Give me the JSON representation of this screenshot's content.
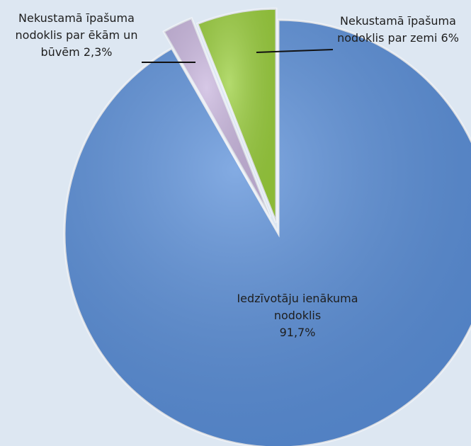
{
  "chart_data": {
    "type": "pie",
    "categories": [
      "Iedzīvotāju ienākuma nodoklis",
      "Nekustamā īpašuma nodoklis par ēkām un būvēm",
      "Nekustamā īpašuma nodoklis par zemi"
    ],
    "values": [
      91.7,
      2.3,
      6
    ],
    "value_labels": [
      "91,7%",
      "2,3%",
      "6%"
    ],
    "colors": [
      "#5a8fd9",
      "#c9b6de",
      "#9bcf3e"
    ]
  }
}
